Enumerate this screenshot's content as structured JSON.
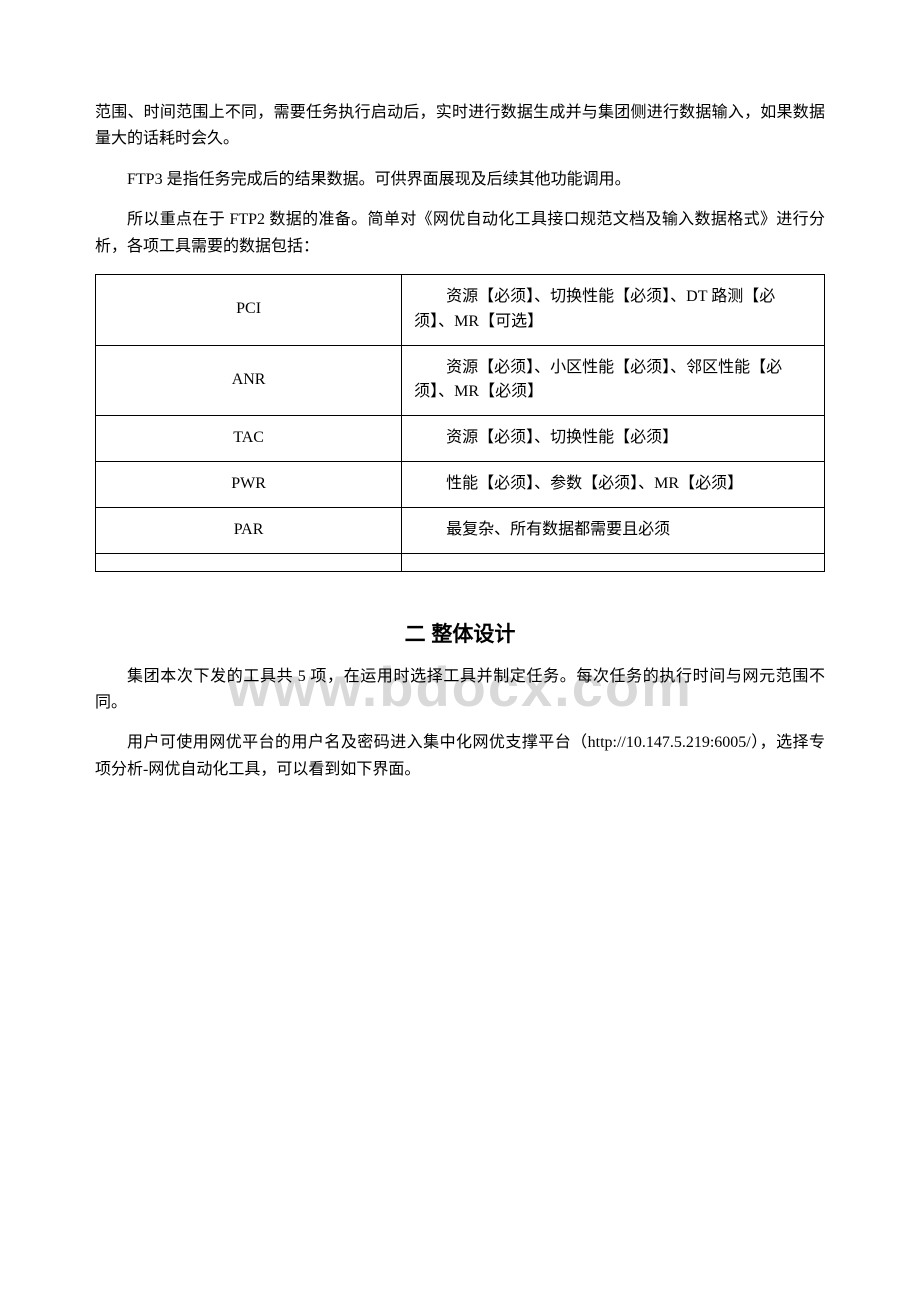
{
  "watermark": "www.bdocx.com",
  "paragraphs": {
    "p1": "范围、时间范围上不同，需要任务执行启动后，实时进行数据生成并与集团侧进行数据输入，如果数据量大的话耗时会久。",
    "p2": "FTP3 是指任务完成后的结果数据。可供界面展现及后续其他功能调用。",
    "p3": "所以重点在于 FTP2 数据的准备。简单对《网优自动化工具接口规范文档及输入数据格式》进行分析，各项工具需要的数据包括："
  },
  "table": {
    "rows": [
      {
        "key": "PCI",
        "value": "资源【必须】、切换性能【必须】、DT 路测【必须】、MR【可选】"
      },
      {
        "key": "ANR",
        "value": "资源【必须】、小区性能【必须】、邻区性能【必须】、MR【必须】"
      },
      {
        "key": "TAC",
        "value": "资源【必须】、切换性能【必须】"
      },
      {
        "key": "PWR",
        "value": "性能【必须】、参数【必须】、MR【必须】"
      },
      {
        "key": "PAR",
        "value": "最复杂、所有数据都需要且必须"
      }
    ]
  },
  "section2": {
    "heading": "二 整体设计",
    "p1": "集团本次下发的工具共 5 项，在运用时选择工具并制定任务。每次任务的执行时间与网元范围不同。",
    "p2": "用户可使用网优平台的用户名及密码进入集中化网优支撑平台（http://10.147.5.219:6005/），选择专项分析-网优自动化工具，可以看到如下界面。"
  }
}
